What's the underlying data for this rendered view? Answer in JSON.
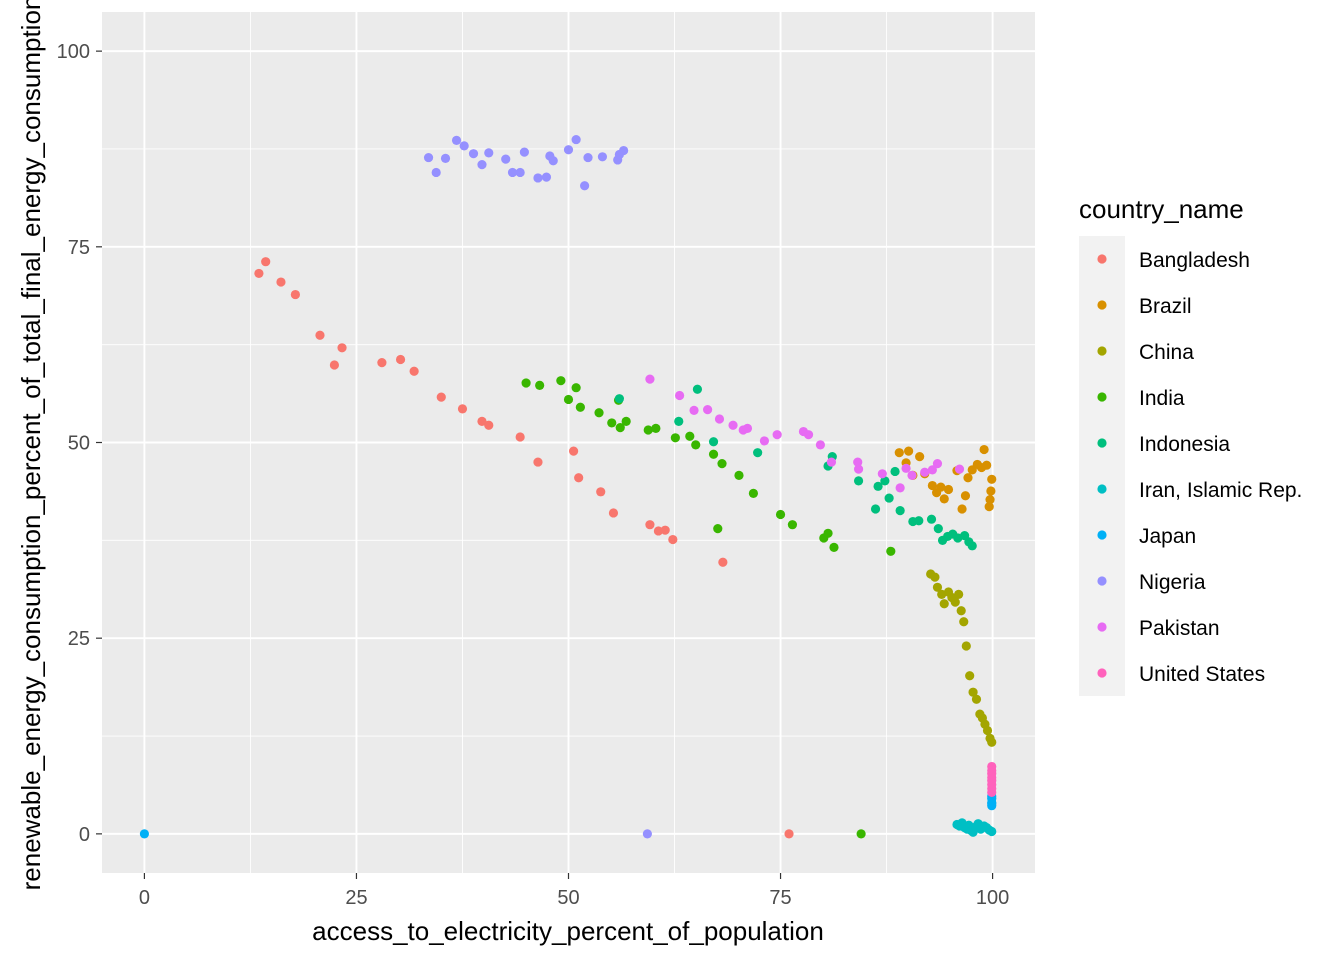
{
  "chart_data": {
    "type": "scatter",
    "title": "",
    "xlabel": "access_to_electricity_percent_of_population",
    "ylabel": "renewable_energy_consumption_percent_of_total_final_energy_consumption",
    "xlim": [
      -5,
      105
    ],
    "ylim": [
      -5,
      105
    ],
    "xticks": [
      0,
      25,
      50,
      75,
      100
    ],
    "yticks": [
      0,
      25,
      50,
      75,
      100
    ],
    "grid": true,
    "legend": {
      "title": "country_name",
      "position": "right"
    },
    "series": [
      {
        "name": "Bangladesh",
        "color": "#F8766D",
        "points": [
          [
            13.5,
            71.6
          ],
          [
            14.3,
            73.1
          ],
          [
            16.1,
            70.5
          ],
          [
            17.8,
            68.9
          ],
          [
            20.7,
            63.7
          ],
          [
            22.4,
            59.9
          ],
          [
            23.3,
            62.1
          ],
          [
            28.0,
            60.2
          ],
          [
            30.2,
            60.6
          ],
          [
            31.8,
            59.1
          ],
          [
            35.0,
            55.8
          ],
          [
            37.5,
            54.3
          ],
          [
            39.8,
            52.7
          ],
          [
            40.6,
            52.2
          ],
          [
            44.3,
            50.7
          ],
          [
            46.4,
            47.5
          ],
          [
            50.6,
            48.9
          ],
          [
            51.2,
            45.5
          ],
          [
            53.8,
            43.7
          ],
          [
            55.3,
            41.0
          ],
          [
            59.6,
            39.5
          ],
          [
            60.6,
            38.7
          ],
          [
            61.4,
            38.8
          ],
          [
            62.3,
            37.6
          ],
          [
            68.2,
            34.7
          ],
          [
            76.0,
            0.0
          ]
        ]
      },
      {
        "name": "Brazil",
        "color": "#D89000",
        "points": [
          [
            89.0,
            48.7
          ],
          [
            89.8,
            47.4
          ],
          [
            90.1,
            48.9
          ],
          [
            90.6,
            45.8
          ],
          [
            91.4,
            48.2
          ],
          [
            92.0,
            46.0
          ],
          [
            92.9,
            44.5
          ],
          [
            93.4,
            43.6
          ],
          [
            93.9,
            44.3
          ],
          [
            94.3,
            42.8
          ],
          [
            94.8,
            44.0
          ],
          [
            95.8,
            46.4
          ],
          [
            96.4,
            41.5
          ],
          [
            96.8,
            43.2
          ],
          [
            97.1,
            45.5
          ],
          [
            97.6,
            46.5
          ],
          [
            98.2,
            47.2
          ],
          [
            98.7,
            46.8
          ],
          [
            99.0,
            49.1
          ],
          [
            99.3,
            47.1
          ],
          [
            99.6,
            41.8
          ],
          [
            99.7,
            42.7
          ],
          [
            99.8,
            43.8
          ],
          [
            99.9,
            45.3
          ]
        ]
      },
      {
        "name": "China",
        "color": "#A3A500",
        "points": [
          [
            92.7,
            33.2
          ],
          [
            93.2,
            32.8
          ],
          [
            93.5,
            31.5
          ],
          [
            94.0,
            30.6
          ],
          [
            94.3,
            29.4
          ],
          [
            94.8,
            30.9
          ],
          [
            95.2,
            30.2
          ],
          [
            95.6,
            29.6
          ],
          [
            96.0,
            30.6
          ],
          [
            96.3,
            28.5
          ],
          [
            96.6,
            27.1
          ],
          [
            96.9,
            24.0
          ],
          [
            97.3,
            20.2
          ],
          [
            97.7,
            18.1
          ],
          [
            98.1,
            17.2
          ],
          [
            98.5,
            15.3
          ],
          [
            98.8,
            14.8
          ],
          [
            99.1,
            14.0
          ],
          [
            99.4,
            13.2
          ],
          [
            99.7,
            12.2
          ],
          [
            99.9,
            11.7
          ]
        ]
      },
      {
        "name": "India",
        "color": "#39B600",
        "points": [
          [
            45.0,
            57.6
          ],
          [
            46.6,
            57.3
          ],
          [
            49.1,
            57.9
          ],
          [
            50.0,
            55.5
          ],
          [
            50.9,
            57.0
          ],
          [
            51.4,
            54.5
          ],
          [
            53.6,
            53.8
          ],
          [
            55.1,
            52.5
          ],
          [
            55.9,
            55.4
          ],
          [
            56.1,
            51.9
          ],
          [
            56.8,
            52.7
          ],
          [
            59.4,
            51.6
          ],
          [
            60.3,
            51.8
          ],
          [
            62.6,
            50.6
          ],
          [
            64.3,
            50.8
          ],
          [
            65.0,
            49.7
          ],
          [
            67.1,
            48.5
          ],
          [
            67.6,
            39.0
          ],
          [
            68.1,
            47.3
          ],
          [
            70.1,
            45.8
          ],
          [
            71.8,
            43.5
          ],
          [
            75.0,
            40.8
          ],
          [
            76.4,
            39.5
          ],
          [
            80.1,
            37.8
          ],
          [
            80.6,
            38.4
          ],
          [
            81.3,
            36.6
          ],
          [
            84.5,
            0.0
          ],
          [
            88.0,
            36.1
          ]
        ]
      },
      {
        "name": "Indonesia",
        "color": "#00BF7D",
        "points": [
          [
            56.0,
            55.6
          ],
          [
            63.0,
            52.7
          ],
          [
            65.2,
            56.8
          ],
          [
            67.1,
            50.1
          ],
          [
            72.3,
            48.7
          ],
          [
            80.6,
            47.0
          ],
          [
            81.1,
            48.2
          ],
          [
            84.2,
            45.1
          ],
          [
            86.2,
            41.5
          ],
          [
            86.5,
            44.4
          ],
          [
            87.3,
            45.1
          ],
          [
            87.8,
            42.9
          ],
          [
            88.5,
            46.3
          ],
          [
            89.1,
            41.3
          ],
          [
            90.6,
            39.9
          ],
          [
            91.3,
            40.0
          ],
          [
            92.8,
            40.2
          ],
          [
            93.6,
            39.0
          ],
          [
            94.1,
            37.5
          ],
          [
            94.7,
            38.0
          ],
          [
            95.3,
            38.3
          ],
          [
            95.9,
            37.8
          ],
          [
            96.7,
            38.1
          ],
          [
            97.2,
            37.3
          ],
          [
            97.6,
            36.8
          ]
        ]
      },
      {
        "name": "Iran, Islamic Rep.",
        "color": "#00BFC4",
        "points": [
          [
            95.8,
            1.2
          ],
          [
            96.1,
            1.0
          ],
          [
            96.4,
            1.4
          ],
          [
            96.7,
            0.8
          ],
          [
            97.0,
            0.6
          ],
          [
            97.2,
            1.1
          ],
          [
            97.5,
            0.4
          ],
          [
            97.7,
            0.2
          ],
          [
            98.0,
            0.9
          ],
          [
            98.3,
            1.3
          ],
          [
            98.6,
            0.6
          ],
          [
            99.0,
            1.0
          ],
          [
            99.3,
            0.8
          ],
          [
            99.6,
            0.5
          ],
          [
            99.9,
            0.3
          ]
        ]
      },
      {
        "name": "Japan",
        "color": "#00B0F6",
        "points": [
          [
            0.0,
            0.0
          ],
          [
            99.9,
            3.6
          ],
          [
            99.9,
            4.0
          ],
          [
            99.9,
            4.5
          ],
          [
            99.9,
            4.8
          ],
          [
            99.9,
            3.9
          ]
        ]
      },
      {
        "name": "Nigeria",
        "color": "#9590FF",
        "points": [
          [
            33.5,
            86.4
          ],
          [
            34.4,
            84.5
          ],
          [
            35.5,
            86.3
          ],
          [
            36.8,
            88.6
          ],
          [
            37.7,
            87.9
          ],
          [
            38.8,
            86.9
          ],
          [
            39.8,
            85.5
          ],
          [
            40.6,
            87.0
          ],
          [
            42.6,
            86.2
          ],
          [
            43.4,
            84.5
          ],
          [
            44.3,
            84.5
          ],
          [
            44.8,
            87.1
          ],
          [
            46.4,
            83.8
          ],
          [
            47.4,
            83.9
          ],
          [
            47.8,
            86.6
          ],
          [
            48.2,
            86.0
          ],
          [
            50.0,
            87.4
          ],
          [
            50.9,
            88.7
          ],
          [
            51.9,
            82.8
          ],
          [
            52.3,
            86.4
          ],
          [
            54.0,
            86.5
          ],
          [
            55.8,
            86.1
          ],
          [
            56.0,
            86.8
          ],
          [
            56.5,
            87.3
          ],
          [
            59.3,
            0.0
          ]
        ]
      },
      {
        "name": "Pakistan",
        "color": "#E76BF3",
        "points": [
          [
            59.6,
            58.1
          ],
          [
            63.1,
            56.0
          ],
          [
            64.8,
            54.1
          ],
          [
            66.4,
            54.2
          ],
          [
            67.8,
            53.0
          ],
          [
            69.4,
            52.2
          ],
          [
            70.6,
            51.6
          ],
          [
            71.1,
            51.8
          ],
          [
            73.1,
            50.2
          ],
          [
            74.6,
            51.0
          ],
          [
            77.7,
            51.4
          ],
          [
            78.3,
            51.0
          ],
          [
            79.7,
            49.7
          ],
          [
            81.0,
            47.5
          ],
          [
            84.1,
            47.5
          ],
          [
            84.2,
            46.6
          ],
          [
            87.0,
            46.0
          ],
          [
            89.1,
            44.2
          ],
          [
            89.8,
            46.7
          ],
          [
            90.5,
            45.8
          ],
          [
            92.0,
            46.2
          ],
          [
            92.9,
            46.5
          ],
          [
            93.5,
            47.3
          ],
          [
            96.1,
            46.6
          ]
        ]
      },
      {
        "name": "United States",
        "color": "#FF62BC",
        "points": [
          [
            99.9,
            5.3
          ],
          [
            99.9,
            5.8
          ],
          [
            99.9,
            6.3
          ],
          [
            99.9,
            6.8
          ],
          [
            99.9,
            7.2
          ],
          [
            99.9,
            7.7
          ],
          [
            99.9,
            8.1
          ],
          [
            99.9,
            8.6
          ]
        ]
      }
    ]
  }
}
